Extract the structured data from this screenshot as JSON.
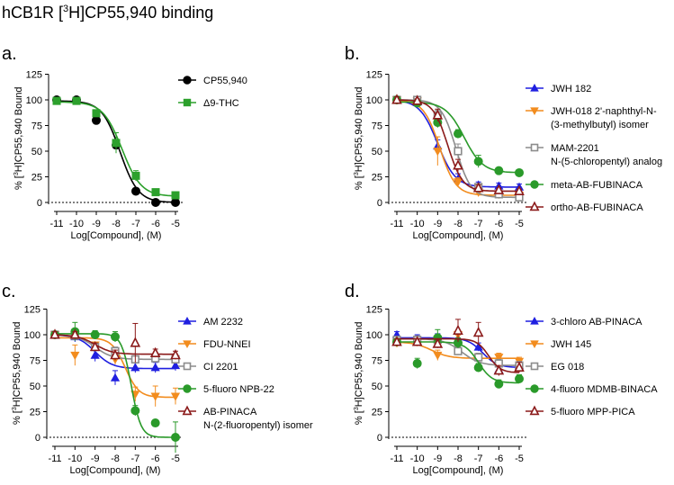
{
  "figure_title": {
    "pre": "hCB1R [",
    "sup": "3",
    "post": "H]CP55,940 binding"
  },
  "chart_data": [
    {
      "panel": "a.",
      "type": "scatter",
      "xlabel": "Log[Compound], (M)",
      "ylabel_parts": [
        "% [",
        "3",
        "H]CP55,940 Bound"
      ],
      "xlim": [
        -11,
        -5
      ],
      "ylim": [
        0,
        125
      ],
      "xticks": [
        -11,
        -10,
        -9,
        -8,
        -7,
        -6,
        -5
      ],
      "xtick_labels": [
        "-11",
        "-10",
        "-9",
        "-8",
        "-7",
        "-6",
        "-5"
      ],
      "yticks": [
        0,
        25,
        50,
        75,
        100,
        125
      ],
      "ytick_labels": [
        "0",
        "25",
        "50",
        "75",
        "100",
        "125"
      ],
      "baseline": 0,
      "series": [
        {
          "name": "CP55,940",
          "color": "#000000",
          "marker": "circle",
          "x": [
            -11,
            -10,
            -9,
            -8,
            -7,
            -6,
            -5
          ],
          "y": [
            100,
            100,
            80,
            56,
            11,
            0,
            0
          ],
          "err": [
            2,
            2,
            3,
            4,
            3,
            2,
            2
          ],
          "fit": {
            "top": 99,
            "bottom": 0,
            "logic50": -7.8,
            "hill": 0.95
          }
        },
        {
          "name": "Δ9-THC",
          "color": "#2ca02c",
          "marker": "square",
          "x": [
            -11,
            -10,
            -9,
            -8,
            -7,
            -6,
            -5
          ],
          "y": [
            99,
            99,
            87,
            58,
            26,
            10,
            7
          ],
          "err": [
            2,
            2,
            3,
            10,
            5,
            2,
            2
          ],
          "fit": {
            "top": 98,
            "bottom": 6,
            "logic50": -7.7,
            "hill": 0.9
          }
        }
      ]
    },
    {
      "panel": "b.",
      "type": "scatter",
      "xlabel": "Log[Compound], (M)",
      "ylabel_parts": [
        "% [",
        "3",
        "H]CP55,940 Bound"
      ],
      "xlim": [
        -11,
        -5
      ],
      "ylim": [
        0,
        125
      ],
      "xticks": [
        -11,
        -10,
        -9,
        -8,
        -7,
        -6,
        -5
      ],
      "xtick_labels": [
        "-11",
        "-10",
        "-9",
        "-8",
        "-7",
        "-6",
        "-5"
      ],
      "yticks": [
        0,
        25,
        50,
        75,
        100,
        125
      ],
      "ytick_labels": [
        "0",
        "25",
        "50",
        "75",
        "100",
        "125"
      ],
      "baseline": 0,
      "series": [
        {
          "name": "JWH 182",
          "legend_lines": [
            "JWH 182"
          ],
          "color": "#1f1fe0",
          "marker": "triangle-up",
          "x": [
            -11,
            -10,
            -9,
            -8,
            -7,
            -6,
            -5
          ],
          "y": [
            100,
            98,
            55,
            23,
            17,
            16,
            15
          ],
          "err": [
            3,
            2,
            6,
            5,
            3,
            3,
            3
          ],
          "fit": {
            "top": 100,
            "bottom": 15,
            "logic50": -9.0,
            "hill": 1.0
          }
        },
        {
          "name": "JWH-018 2'-naphthyl-N-(3-methylbutyl) isomer",
          "legend_lines": [
            "JWH-018 2'-naphthyl-N-",
            "(3-methylbutyl) isomer"
          ],
          "color": "#f28c1e",
          "marker": "triangle-down",
          "x": [
            -11,
            -10,
            -9,
            -8,
            -7,
            -6,
            -5
          ],
          "y": [
            100,
            99,
            50,
            20,
            10,
            8,
            7
          ],
          "err": [
            3,
            2,
            14,
            4,
            3,
            2,
            2
          ],
          "fit": {
            "top": 100,
            "bottom": 7,
            "logic50": -8.9,
            "hill": 1.1
          }
        },
        {
          "name": "MAM-2201 N-(5-chloropentyl) analog",
          "legend_lines": [
            "MAM-2201",
            "N-(5-chloropentyl) analog"
          ],
          "color": "#8c8c8c",
          "marker": "square-open",
          "x": [
            -11,
            -10,
            -9,
            -8,
            -7,
            -6,
            -5
          ],
          "y": [
            100,
            100,
            85,
            50,
            15,
            8,
            5
          ],
          "err": [
            3,
            2,
            5,
            7,
            3,
            2,
            2
          ],
          "fit": {
            "top": 100,
            "bottom": 5,
            "logic50": -8.1,
            "hill": 1.2
          }
        },
        {
          "name": "meta-AB-FUBINACA",
          "legend_lines": [
            "meta-AB-FUBINACA"
          ],
          "color": "#2a9a2a",
          "marker": "circle",
          "x": [
            -11,
            -10,
            -9,
            -8,
            -7,
            -6,
            -5
          ],
          "y": [
            100,
            97,
            78,
            67,
            40,
            31,
            29
          ],
          "err": [
            3,
            3,
            5,
            4,
            6,
            3,
            2
          ],
          "fit": {
            "top": 98,
            "bottom": 29,
            "logic50": -7.7,
            "hill": 0.95
          }
        },
        {
          "name": "ortho-AB-FUBINACA",
          "legend_lines": [
            "ortho-AB-FUBINACA"
          ],
          "color": "#8b1a1a",
          "marker": "triangle-open",
          "x": [
            -11,
            -10,
            -9,
            -8,
            -7,
            -6,
            -5
          ],
          "y": [
            100,
            99,
            85,
            36,
            14,
            12,
            11
          ],
          "err": [
            3,
            2,
            6,
            6,
            3,
            2,
            2
          ],
          "fit": {
            "top": 100,
            "bottom": 11,
            "logic50": -8.5,
            "hill": 1.2
          }
        }
      ]
    },
    {
      "panel": "c.",
      "type": "scatter",
      "xlabel": "Log[Compound], (M)",
      "ylabel_parts": [
        "% [",
        "3",
        "H]CP55,940 Bound"
      ],
      "xlim": [
        -11,
        -5
      ],
      "ylim": [
        0,
        125
      ],
      "xticks": [
        -11,
        -10,
        -9,
        -8,
        -7,
        -6,
        -5
      ],
      "xtick_labels": [
        "-11",
        "-10",
        "-9",
        "-8",
        "-7",
        "-6",
        "-5"
      ],
      "yticks": [
        0,
        25,
        50,
        75,
        100,
        125
      ],
      "ytick_labels": [
        "0",
        "25",
        "50",
        "75",
        "100",
        "125"
      ],
      "baseline": 0,
      "series": [
        {
          "name": "AM 2232",
          "legend_lines": [
            "AM 2232"
          ],
          "color": "#1f1fe0",
          "marker": "triangle-up",
          "x": [
            -11,
            -10,
            -9,
            -8,
            -7,
            -6,
            -5
          ],
          "y": [
            100,
            98,
            80,
            58,
            68,
            68,
            70
          ],
          "err": [
            3,
            5,
            6,
            7,
            5,
            5,
            5
          ],
          "fit": {
            "top": 100,
            "bottom": 67,
            "logic50": -9.0,
            "hill": 1.0
          }
        },
        {
          "name": "FDU-NNEI",
          "legend_lines": [
            "FDU-NNEI"
          ],
          "color": "#f28c1e",
          "marker": "triangle-down",
          "x": [
            -11,
            -10,
            -9,
            -8,
            -7,
            -6,
            -5
          ],
          "y": [
            100,
            80,
            90,
            76,
            42,
            40,
            40
          ],
          "err": [
            3,
            10,
            3,
            5,
            7,
            10,
            8
          ],
          "fit": {
            "top": 97,
            "bottom": 39,
            "logic50": -7.5,
            "hill": 1.3
          }
        },
        {
          "name": "CI 2201",
          "legend_lines": [
            "CI 2201"
          ],
          "color": "#8c8c8c",
          "marker": "square-open",
          "x": [
            -11,
            -10,
            -9,
            -8,
            -7,
            -6,
            -5
          ],
          "y": [
            100,
            99,
            88,
            84,
            76,
            77,
            76
          ],
          "err": [
            3,
            3,
            4,
            4,
            3,
            4,
            3
          ],
          "fit": {
            "top": 100,
            "bottom": 76,
            "logic50": -9.0,
            "hill": 1.0
          }
        },
        {
          "name": "5-fluoro NPB-22",
          "legend_lines": [
            "5-fluoro NPB-22"
          ],
          "color": "#2a9a2a",
          "marker": "circle",
          "x": [
            -11,
            -10,
            -9,
            -8,
            -7,
            -6,
            -5
          ],
          "y": [
            100,
            103,
            100,
            98,
            26,
            14,
            0
          ],
          "err": [
            3,
            9,
            4,
            5,
            5,
            3,
            15
          ],
          "fit": {
            "top": 101,
            "bottom": 0,
            "logic50": -7.2,
            "hill": 1.8
          }
        },
        {
          "name": "AB-PINACA N-(2-fluoropentyl) isomer",
          "legend_lines": [
            "AB-PINACA",
            "N-(2-fluoropentyl) isomer"
          ],
          "color": "#8b1a1a",
          "marker": "triangle-open",
          "x": [
            -11,
            -10,
            -9,
            -8,
            -7,
            -6,
            -5
          ],
          "y": [
            100,
            100,
            88,
            80,
            92,
            82,
            80
          ],
          "err": [
            3,
            3,
            4,
            5,
            19,
            4,
            4
          ],
          "fit": {
            "top": 100,
            "bottom": 81,
            "logic50": -9.0,
            "hill": 1.0
          }
        }
      ]
    },
    {
      "panel": "d.",
      "type": "scatter",
      "xlabel": "Log[Compound], (M)",
      "ylabel_parts": [
        "% [",
        "3",
        "H]CP55,940 Bound"
      ],
      "xlim": [
        -11,
        -5
      ],
      "ylim": [
        0,
        125
      ],
      "xticks": [
        -11,
        -10,
        -9,
        -8,
        -7,
        -6,
        -5
      ],
      "xtick_labels": [
        "-11",
        "-10",
        "-9",
        "-8",
        "-7",
        "-6",
        "-5"
      ],
      "yticks": [
        0,
        25,
        50,
        75,
        100,
        125
      ],
      "ytick_labels": [
        "0",
        "25",
        "50",
        "75",
        "100",
        "125"
      ],
      "baseline": 0,
      "series": [
        {
          "name": "3-chloro AB-PINACA",
          "legend_lines": [
            "3-chloro AB-PINACA"
          ],
          "color": "#1f1fe0",
          "marker": "triangle-up",
          "x": [
            -11,
            -10,
            -9,
            -8,
            -7,
            -6,
            -5
          ],
          "y": [
            100,
            96,
            96,
            96,
            88,
            66,
            70
          ],
          "err": [
            3,
            4,
            5,
            4,
            4,
            5,
            4
          ],
          "fit": {
            "top": 97,
            "bottom": 68,
            "logic50": -6.8,
            "hill": 1.2
          }
        },
        {
          "name": "JWH 145",
          "legend_lines": [
            "JWH 145"
          ],
          "color": "#f28c1e",
          "marker": "triangle-down",
          "x": [
            -11,
            -10,
            -9,
            -8,
            -7,
            -6,
            -5
          ],
          "y": [
            92,
            93,
            80,
            100,
            78,
            78,
            74
          ],
          "err": [
            3,
            4,
            5,
            4,
            4,
            4,
            4
          ],
          "fit": {
            "top": 93,
            "bottom": 77,
            "logic50": -9.3,
            "hill": 1.0
          }
        },
        {
          "name": "EG 018",
          "legend_lines": [
            "EG 018"
          ],
          "color": "#8c8c8c",
          "marker": "square-open",
          "x": [
            -11,
            -10,
            -9,
            -8,
            -7,
            -6,
            -5
          ],
          "y": [
            95,
            95,
            95,
            84,
            78,
            72,
            70
          ],
          "err": [
            3,
            4,
            4,
            4,
            4,
            4,
            4
          ],
          "fit": {
            "top": 96,
            "bottom": 70,
            "logic50": -7.8,
            "hill": 1.0
          }
        },
        {
          "name": "4-fluoro MDMB-BINACA",
          "legend_lines": [
            "4-fluoro MDMB-BINACA"
          ],
          "color": "#2a9a2a",
          "marker": "circle",
          "x": [
            -11,
            -10,
            -9,
            -8,
            -7,
            -6,
            -5
          ],
          "y": [
            93,
            72,
            97,
            92,
            68,
            52,
            57
          ],
          "err": [
            3,
            5,
            8,
            5,
            4,
            4,
            4
          ],
          "fit": {
            "top": 93,
            "bottom": 53,
            "logic50": -7.0,
            "hill": 1.3
          }
        },
        {
          "name": "5-fluoro MPP-PICA",
          "legend_lines": [
            "5-fluoro MPP-PICA"
          ],
          "color": "#8b1a1a",
          "marker": "triangle-open",
          "x": [
            -11,
            -10,
            -9,
            -8,
            -7,
            -6,
            -5
          ],
          "y": [
            93,
            93,
            91,
            104,
            102,
            65,
            68
          ],
          "err": [
            3,
            3,
            4,
            11,
            10,
            5,
            5
          ],
          "fit": {
            "top": 96,
            "bottom": 63,
            "logic50": -6.5,
            "hill": 1.5
          }
        }
      ]
    }
  ]
}
